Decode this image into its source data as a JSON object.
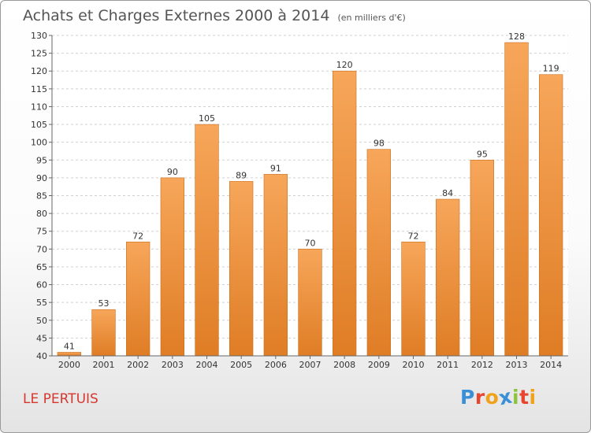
{
  "header": {
    "title": "Achats et Charges Externes 2000 à 2014",
    "subtitle": "(en milliers d'€)"
  },
  "footer": {
    "place": "LE PERTUIS",
    "logo_letters": [
      {
        "ch": "P",
        "color": "#3a8fd6"
      },
      {
        "ch": "r",
        "color": "#e8452f"
      },
      {
        "ch": "o",
        "color": "#f0a21b"
      },
      {
        "ch": "x",
        "color": "#3a8fd6"
      },
      {
        "ch": "i",
        "color": "#8bc53f"
      },
      {
        "ch": "t",
        "color": "#e8452f"
      },
      {
        "ch": "i",
        "color": "#f0a21b"
      }
    ]
  },
  "colors": {
    "bar_top": "#f7a65a",
    "bar_bottom": "#df7d25",
    "bar_edge": "#c96e1e",
    "grid": "#d0d0d0",
    "plot_bg": "#ffffff",
    "text": "#333333"
  },
  "chart_data": {
    "type": "bar",
    "title": "Achats et Charges Externes 2000 à 2014",
    "subtitle": "(en milliers d'€)",
    "categories": [
      "2000",
      "2001",
      "2002",
      "2003",
      "2004",
      "2005",
      "2006",
      "2007",
      "2008",
      "2009",
      "2010",
      "2011",
      "2012",
      "2013",
      "2014"
    ],
    "values": [
      41,
      53,
      72,
      90,
      105,
      89,
      91,
      70,
      120,
      98,
      72,
      84,
      95,
      128,
      119
    ],
    "ylim": [
      40,
      130
    ],
    "yticks": [
      40,
      45,
      50,
      55,
      60,
      65,
      70,
      75,
      80,
      85,
      90,
      95,
      100,
      105,
      110,
      115,
      120,
      125,
      130
    ],
    "grid": "horizontal dashed",
    "data_labels": true
  }
}
